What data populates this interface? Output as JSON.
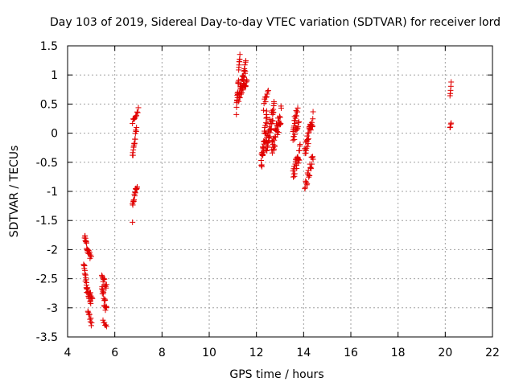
{
  "chart_data": {
    "type": "scatter",
    "title": "Day 103 of 2019, Sidereal Day-to-day VTEC variation (SDTVAR) for receiver lord",
    "xlabel": "GPS time / hours",
    "ylabel": "SDTVAR / TECUs",
    "xlim": [
      4,
      22
    ],
    "ylim": [
      -3.5,
      1.5
    ],
    "xticks": [
      4,
      6,
      8,
      10,
      12,
      14,
      16,
      18,
      20,
      22
    ],
    "yticks": [
      -3.5,
      -3,
      -2.5,
      -2,
      -1.5,
      -1,
      -0.5,
      0,
      0.5,
      1,
      1.5
    ],
    "xtick_labels": [
      "4",
      "6",
      "8",
      "10",
      "12",
      "14",
      "16",
      "18",
      "20",
      "22"
    ],
    "ytick_labels": [
      "-3.5",
      "-3",
      "-2.5",
      "-2",
      "-1.5",
      "-1",
      "-0.5",
      "0",
      "0.5",
      "1",
      "1.5"
    ],
    "grid": true,
    "marker": "+",
    "color": "#e00000",
    "segments": [
      {
        "x0": 4.72,
        "x1": 4.85,
        "y0": -1.75,
        "y1": -2.05,
        "noise": 0.05,
        "n": 14
      },
      {
        "x0": 4.85,
        "x1": 5.0,
        "y0": -2.0,
        "y1": -2.15,
        "noise": 0.05,
        "n": 10
      },
      {
        "x0": 4.68,
        "x1": 4.82,
        "y0": -2.2,
        "y1": -2.7,
        "noise": 0.08,
        "n": 16
      },
      {
        "x0": 4.8,
        "x1": 4.98,
        "y0": -2.6,
        "y1": -2.9,
        "noise": 0.07,
        "n": 14
      },
      {
        "x0": 4.86,
        "x1": 5.02,
        "y0": -3.0,
        "y1": -3.3,
        "noise": 0.06,
        "n": 10
      },
      {
        "x0": 4.95,
        "x1": 5.05,
        "y0": -2.75,
        "y1": -2.85,
        "noise": 0.04,
        "n": 6
      },
      {
        "x0": 5.45,
        "x1": 5.65,
        "y0": -2.45,
        "y1": -2.65,
        "noise": 0.06,
        "n": 12
      },
      {
        "x0": 5.45,
        "x1": 5.65,
        "y0": -2.7,
        "y1": -3.05,
        "noise": 0.1,
        "n": 18
      },
      {
        "x0": 5.5,
        "x1": 5.65,
        "y0": -3.2,
        "y1": -3.35,
        "noise": 0.04,
        "n": 6
      },
      {
        "x0": 6.75,
        "x1": 6.8,
        "y0": -1.53,
        "y1": -1.53,
        "noise": 0.0,
        "n": 1
      },
      {
        "x0": 6.75,
        "x1": 6.95,
        "y0": -1.2,
        "y1": -0.9,
        "noise": 0.06,
        "n": 16
      },
      {
        "x0": 6.75,
        "x1": 6.92,
        "y0": -0.4,
        "y1": 0.1,
        "noise": 0.06,
        "n": 16
      },
      {
        "x0": 6.75,
        "x1": 7.0,
        "y0": 0.2,
        "y1": 0.4,
        "noise": 0.04,
        "n": 10
      },
      {
        "x0": 11.15,
        "x1": 11.3,
        "y0": 0.35,
        "y1": 1.35,
        "noise": 0.08,
        "n": 22
      },
      {
        "x0": 11.25,
        "x1": 11.55,
        "y0": 0.6,
        "y1": 1.15,
        "noise": 0.1,
        "n": 30
      },
      {
        "x0": 11.35,
        "x1": 11.6,
        "y0": 0.7,
        "y1": 0.9,
        "noise": 0.08,
        "n": 16
      },
      {
        "x0": 12.2,
        "x1": 12.45,
        "y0": -0.55,
        "y1": 0.3,
        "noise": 0.15,
        "n": 34
      },
      {
        "x0": 12.3,
        "x1": 12.5,
        "y0": 0.45,
        "y1": 0.8,
        "noise": 0.07,
        "n": 10
      },
      {
        "x0": 12.4,
        "x1": 12.75,
        "y0": -0.25,
        "y1": 0.45,
        "noise": 0.15,
        "n": 40
      },
      {
        "x0": 12.65,
        "x1": 13.05,
        "y0": -0.3,
        "y1": 0.35,
        "noise": 0.15,
        "n": 36
      },
      {
        "x0": 13.55,
        "x1": 13.75,
        "y0": 0.1,
        "y1": 0.45,
        "noise": 0.08,
        "n": 16
      },
      {
        "x0": 13.55,
        "x1": 13.8,
        "y0": -0.1,
        "y1": 0.2,
        "noise": 0.08,
        "n": 14
      },
      {
        "x0": 13.55,
        "x1": 13.85,
        "y0": -0.75,
        "y1": -0.3,
        "noise": 0.12,
        "n": 26
      },
      {
        "x0": 14.05,
        "x1": 14.4,
        "y0": -0.3,
        "y1": 0.25,
        "noise": 0.12,
        "n": 32
      },
      {
        "x0": 14.05,
        "x1": 14.4,
        "y0": -0.95,
        "y1": -0.4,
        "noise": 0.1,
        "n": 22
      },
      {
        "x0": 20.2,
        "x1": 20.25,
        "y0": 0.65,
        "y1": 0.85,
        "noise": 0.03,
        "n": 5
      },
      {
        "x0": 20.2,
        "x1": 20.25,
        "y0": 0.08,
        "y1": 0.18,
        "noise": 0.02,
        "n": 4
      }
    ]
  }
}
